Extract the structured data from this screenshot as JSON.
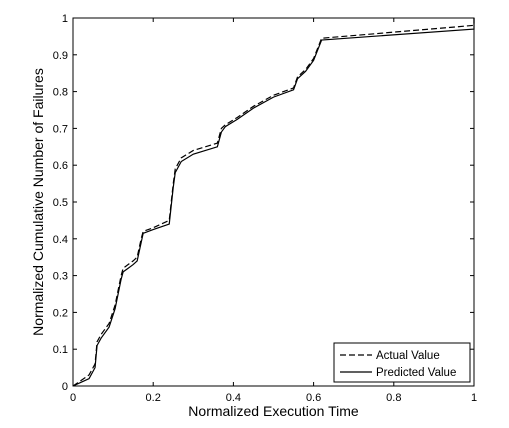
{
  "chart_data": {
    "type": "line",
    "xlabel": "Normalized Execution Time",
    "ylabel": "Normalized Cumulative Number of Failures",
    "xlim": [
      0,
      1
    ],
    "ylim": [
      0,
      1
    ],
    "x_ticks": [
      "0",
      "0.2",
      "0.4",
      "0.6",
      "0.8",
      "1"
    ],
    "y_ticks": [
      "0",
      "0.1",
      "0.2",
      "0.3",
      "0.4",
      "0.5",
      "0.6",
      "0.7",
      "0.8",
      "0.9",
      "1"
    ],
    "grid": false,
    "legend_position": "bottom-right",
    "series": [
      {
        "name": "Actual Value",
        "style": "dashed",
        "color": "#000000",
        "points": [
          [
            0,
            0
          ],
          [
            0.02,
            0.015
          ],
          [
            0.04,
            0.03
          ],
          [
            0.055,
            0.06
          ],
          [
            0.06,
            0.12
          ],
          [
            0.07,
            0.14
          ],
          [
            0.09,
            0.17
          ],
          [
            0.105,
            0.22
          ],
          [
            0.12,
            0.3
          ],
          [
            0.125,
            0.32
          ],
          [
            0.15,
            0.34
          ],
          [
            0.16,
            0.35
          ],
          [
            0.17,
            0.4
          ],
          [
            0.175,
            0.42
          ],
          [
            0.2,
            0.43
          ],
          [
            0.24,
            0.45
          ],
          [
            0.25,
            0.55
          ],
          [
            0.255,
            0.59
          ],
          [
            0.27,
            0.62
          ],
          [
            0.3,
            0.64
          ],
          [
            0.36,
            0.66
          ],
          [
            0.37,
            0.7
          ],
          [
            0.38,
            0.71
          ],
          [
            0.41,
            0.73
          ],
          [
            0.45,
            0.76
          ],
          [
            0.5,
            0.79
          ],
          [
            0.55,
            0.81
          ],
          [
            0.56,
            0.84
          ],
          [
            0.58,
            0.86
          ],
          [
            0.6,
            0.89
          ],
          [
            0.62,
            0.945
          ],
          [
            1,
            0.98
          ],
          [
            1,
            1
          ]
        ]
      },
      {
        "name": "Predicted Value",
        "style": "solid",
        "color": "#000000",
        "points": [
          [
            0,
            0
          ],
          [
            0.02,
            0.01
          ],
          [
            0.04,
            0.02
          ],
          [
            0.055,
            0.05
          ],
          [
            0.06,
            0.11
          ],
          [
            0.07,
            0.13
          ],
          [
            0.09,
            0.16
          ],
          [
            0.105,
            0.21
          ],
          [
            0.12,
            0.29
          ],
          [
            0.125,
            0.31
          ],
          [
            0.15,
            0.33
          ],
          [
            0.16,
            0.34
          ],
          [
            0.17,
            0.39
          ],
          [
            0.175,
            0.415
          ],
          [
            0.2,
            0.425
          ],
          [
            0.24,
            0.44
          ],
          [
            0.25,
            0.54
          ],
          [
            0.255,
            0.58
          ],
          [
            0.27,
            0.61
          ],
          [
            0.3,
            0.63
          ],
          [
            0.36,
            0.65
          ],
          [
            0.37,
            0.69
          ],
          [
            0.38,
            0.705
          ],
          [
            0.41,
            0.725
          ],
          [
            0.45,
            0.755
          ],
          [
            0.5,
            0.785
          ],
          [
            0.55,
            0.805
          ],
          [
            0.56,
            0.835
          ],
          [
            0.58,
            0.855
          ],
          [
            0.6,
            0.885
          ],
          [
            0.62,
            0.94
          ],
          [
            1,
            0.97
          ],
          [
            1,
            1
          ]
        ]
      }
    ]
  }
}
